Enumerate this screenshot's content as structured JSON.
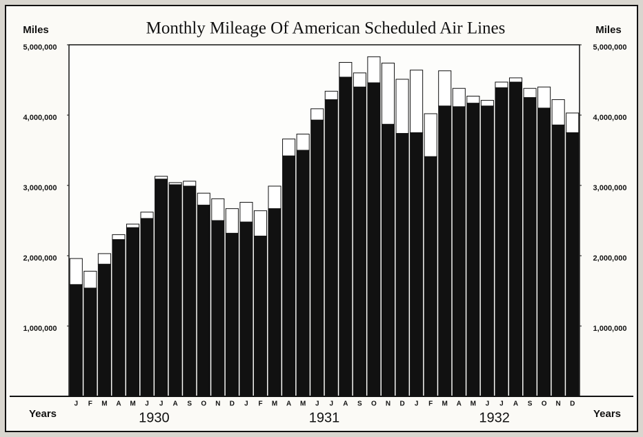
{
  "chart_data": {
    "type": "bar",
    "stacked": true,
    "title": "Monthly Mileage Of American Scheduled Air Lines",
    "y_label": "Miles",
    "y2_label": "Miles",
    "x_label": "Years",
    "categories": [
      "J",
      "F",
      "M",
      "A",
      "M",
      "J",
      "J",
      "A",
      "S",
      "O",
      "N",
      "D",
      "J",
      "F",
      "M",
      "A",
      "M",
      "J",
      "J",
      "A",
      "S",
      "O",
      "N",
      "D",
      "J",
      "F",
      "M",
      "A",
      "M",
      "J",
      "J",
      "A",
      "S",
      "O",
      "N",
      "D"
    ],
    "years": [
      "1930",
      "1931",
      "1932"
    ],
    "series": [
      {
        "color": "#111111",
        "values": [
          1590000,
          1540000,
          1880000,
          2230000,
          2400000,
          2530000,
          3090000,
          3010000,
          2990000,
          2720000,
          2500000,
          2320000,
          2480000,
          2280000,
          2670000,
          3420000,
          3500000,
          3930000,
          4220000,
          4540000,
          4400000,
          4460000,
          3870000,
          3740000,
          3750000,
          3410000,
          4130000,
          4120000,
          4170000,
          4130000,
          4390000,
          4470000,
          4250000,
          4100000,
          3860000,
          3750000
        ]
      },
      {
        "color": "#ffffff",
        "values": [
          370000,
          240000,
          150000,
          70000,
          50000,
          90000,
          40000,
          30000,
          70000,
          170000,
          310000,
          350000,
          280000,
          360000,
          320000,
          240000,
          230000,
          160000,
          120000,
          210000,
          200000,
          370000,
          870000,
          770000,
          890000,
          610000,
          500000,
          260000,
          100000,
          80000,
          80000,
          60000,
          130000,
          300000,
          360000,
          280000
        ]
      }
    ],
    "ylim": [
      0,
      5000000
    ],
    "yticks": [
      {
        "value": 1000000,
        "label": "1,000,000"
      },
      {
        "value": 2000000,
        "label": "2,000,000"
      },
      {
        "value": 3000000,
        "label": "3,000,000"
      },
      {
        "value": 4000000,
        "label": "4,000,000"
      },
      {
        "value": 5000000,
        "label": "5,000,000"
      }
    ],
    "y2lim": [
      0,
      5000000
    ],
    "y2ticks": [
      {
        "value": 1000000,
        "label": "1,000,000"
      },
      {
        "value": 2000000,
        "label": "2,000,000"
      },
      {
        "value": 3000000,
        "label": "3,000,000"
      },
      {
        "value": 4000000,
        "label": "4,000,000"
      },
      {
        "value": 5000000,
        "label": "5,000,000"
      }
    ]
  }
}
